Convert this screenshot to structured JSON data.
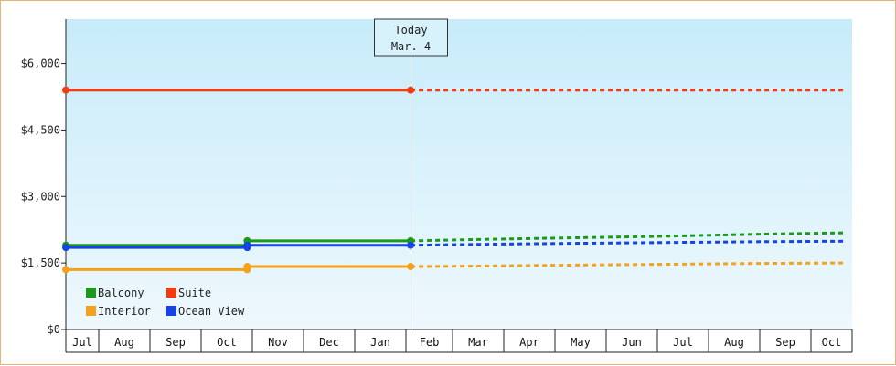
{
  "chart_data": {
    "type": "line",
    "title": "",
    "xlabel": "",
    "ylabel": "",
    "ylim": [
      0,
      7000
    ],
    "y_ticks": [
      {
        "value": 0,
        "label": "$0"
      },
      {
        "value": 1500,
        "label": "$1,500"
      },
      {
        "value": 3000,
        "label": "$3,000"
      },
      {
        "value": 4500,
        "label": "$4,500"
      },
      {
        "value": 6000,
        "label": "$6,000"
      }
    ],
    "x_months": [
      "Jul",
      "Aug",
      "Sep",
      "Oct",
      "Nov",
      "Dec",
      "Jan",
      "Feb",
      "Mar",
      "Apr",
      "May",
      "Jun",
      "Jul",
      "Aug",
      "Sep",
      "Oct"
    ],
    "today": {
      "line1": "Today",
      "line2": "Mar. 4",
      "month_index": 7.1
    },
    "grid": false,
    "background": {
      "top": "#c8ecfa",
      "bottom": "#eef8fd"
    },
    "legend_position": "bottom-left",
    "series": [
      {
        "name": "Balcony",
        "color": "#1a9a1a",
        "historical": [
          [
            0,
            1900
          ],
          [
            3.9,
            1900
          ],
          [
            3.9,
            2000
          ],
          [
            7.1,
            2000
          ]
        ],
        "markers": [
          [
            0,
            1900
          ],
          [
            3.9,
            1900
          ],
          [
            3.9,
            2000
          ],
          [
            7.1,
            2000
          ]
        ],
        "forecast": [
          [
            7.1,
            2000
          ],
          [
            8.5,
            2030
          ],
          [
            10,
            2060
          ],
          [
            12,
            2100
          ],
          [
            14,
            2150
          ],
          [
            15.8,
            2180
          ]
        ]
      },
      {
        "name": "Suite",
        "color": "#f03c10",
        "historical": [
          [
            0,
            5400
          ],
          [
            7.1,
            5400
          ]
        ],
        "markers": [
          [
            0,
            5400
          ],
          [
            7.1,
            5400
          ]
        ],
        "forecast": [
          [
            7.1,
            5400
          ],
          [
            15.8,
            5400
          ]
        ]
      },
      {
        "name": "Interior",
        "color": "#f4a21a",
        "historical": [
          [
            0,
            1350
          ],
          [
            3.9,
            1350
          ],
          [
            3.9,
            1420
          ],
          [
            7.1,
            1420
          ]
        ],
        "markers": [
          [
            0,
            1350
          ],
          [
            3.9,
            1350
          ],
          [
            3.9,
            1420
          ],
          [
            7.1,
            1420
          ]
        ],
        "forecast": [
          [
            7.1,
            1420
          ],
          [
            8.5,
            1430
          ],
          [
            10,
            1450
          ],
          [
            12,
            1470
          ],
          [
            14,
            1490
          ],
          [
            15.8,
            1500
          ]
        ]
      },
      {
        "name": "Ocean View",
        "color": "#1444e8",
        "historical": [
          [
            0,
            1850
          ],
          [
            3.9,
            1850
          ],
          [
            3.9,
            1900
          ],
          [
            7.1,
            1900
          ]
        ],
        "markers": [
          [
            0,
            1850
          ],
          [
            3.9,
            1850
          ],
          [
            3.9,
            1900
          ],
          [
            7.1,
            1900
          ]
        ],
        "forecast": [
          [
            7.1,
            1900
          ],
          [
            8.5,
            1920
          ],
          [
            10,
            1940
          ],
          [
            12,
            1960
          ],
          [
            14,
            1980
          ],
          [
            15.8,
            1990
          ]
        ]
      }
    ]
  }
}
